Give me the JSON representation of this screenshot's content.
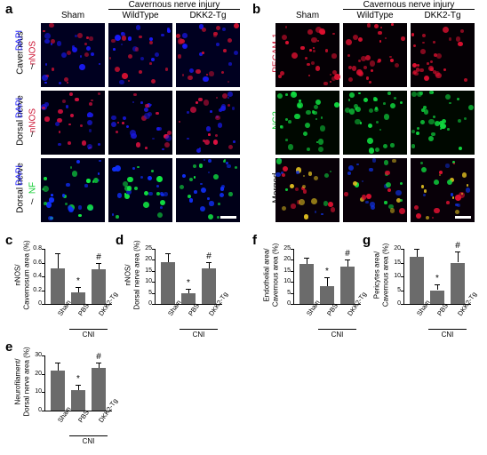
{
  "panel_letters": {
    "a": "a",
    "b": "b",
    "c": "c",
    "d": "d",
    "e": "e",
    "f": "f",
    "g": "g"
  },
  "headers": {
    "sham": "Sham",
    "cni": "Cavernous nerve injury",
    "wt": "WildType",
    "tg": "DKK2-Tg"
  },
  "a_rows": {
    "r1": "Cavernous",
    "r1b": "nNOS",
    "r1c": "DAPI",
    "r2": "Dorsal nerve",
    "r2b": "nNOS",
    "r2c": "DAPI",
    "r3": "Dorsal nerve",
    "r3b": "NF",
    "r3c": "DAPI"
  },
  "b_rows": {
    "r1": "PECAM-1",
    "r2": "NG2",
    "r3": "Merged"
  },
  "charts": {
    "c": {
      "ylab1": "nNOS/",
      "ylab2": "Cavernosum area (%)",
      "ymax": 0.8,
      "yticks": [
        "0",
        "0.2",
        "0.4",
        "0.6",
        "0.8"
      ],
      "bars": [
        {
          "v": 0.52,
          "e": 0.22
        },
        {
          "v": 0.17,
          "e": 0.08,
          "m": "*"
        },
        {
          "v": 0.5,
          "e": 0.1,
          "m": "#"
        }
      ]
    },
    "d": {
      "ylab1": "nNOS/",
      "ylab2": "Dorsal nerve area (%)",
      "ymax": 25,
      "yticks": [
        "0",
        "5",
        "10",
        "15",
        "20",
        "25"
      ],
      "bars": [
        {
          "v": 19,
          "e": 4
        },
        {
          "v": 5,
          "e": 2,
          "m": "*"
        },
        {
          "v": 16,
          "e": 3,
          "m": "#"
        }
      ]
    },
    "e": {
      "ylab1": "Neurofilament/",
      "ylab2": "Dorsal nerve area (%)",
      "ymax": 30,
      "yticks": [
        "0",
        "10",
        "20",
        "30"
      ],
      "bars": [
        {
          "v": 22,
          "e": 4
        },
        {
          "v": 11,
          "e": 3,
          "m": "*"
        },
        {
          "v": 23,
          "e": 3,
          "m": "#"
        }
      ]
    },
    "f": {
      "ylab1": "Endothelial area/",
      "ylab2": "Cavernous area (%)",
      "ymax": 25,
      "yticks": [
        "0",
        "5",
        "10",
        "15",
        "20",
        "25"
      ],
      "bars": [
        {
          "v": 18,
          "e": 3
        },
        {
          "v": 8,
          "e": 4,
          "m": "*"
        },
        {
          "v": 17,
          "e": 3,
          "m": "#"
        }
      ]
    },
    "g": {
      "ylab1": "Pericytes area/",
      "ylab2": "Cavernous area (%)",
      "ymax": 20,
      "yticks": [
        "0",
        "5",
        "10",
        "15",
        "20"
      ],
      "bars": [
        {
          "v": 17,
          "e": 3
        },
        {
          "v": 5,
          "e": 2,
          "m": "*"
        },
        {
          "v": 15,
          "e": 4,
          "m": "#"
        }
      ]
    }
  },
  "chart_x": [
    "Sham",
    "PBS",
    "DKK2-Tg"
  ],
  "chart_group": "CNI",
  "micro_colors": {
    "a": [
      {
        "bg": "#000020",
        "dots": [
          "#cc1030",
          "#1a1aff"
        ]
      },
      {
        "bg": "#000010",
        "dots": [
          "#dd1040",
          "#1818e0"
        ]
      },
      {
        "bg": "#000018",
        "dots": [
          "#11ee44",
          "#1030ff"
        ]
      }
    ],
    "b": [
      {
        "bg": "#050005",
        "dots": [
          "#dd1030"
        ]
      },
      {
        "bg": "#000800",
        "dots": [
          "#10dd40"
        ]
      },
      {
        "bg": "#080008",
        "dots": [
          "#dd1030",
          "#10dd40",
          "#1030dd",
          "#ddbb20"
        ]
      }
    ]
  }
}
